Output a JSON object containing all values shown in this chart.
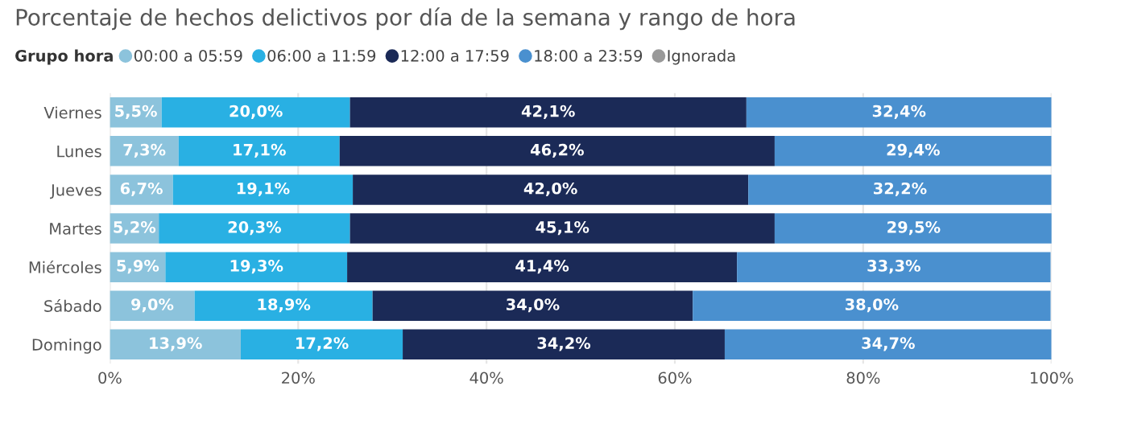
{
  "chart_data": {
    "type": "bar",
    "orientation": "horizontal",
    "stacked": true,
    "title": "Porcentaje de hechos delictivos por día de la semana y rango de hora",
    "legend_title": "Grupo hora",
    "legend": "top left",
    "grid": "x",
    "categories": [
      "Viernes",
      "Lunes",
      "Jueves",
      "Martes",
      "Miércoles",
      "Sábado",
      "Domingo"
    ],
    "xlim": [
      0,
      100
    ],
    "xticks": [
      {
        "value": 0,
        "label": "0%"
      },
      {
        "value": 20,
        "label": "20%"
      },
      {
        "value": 40,
        "label": "40%"
      },
      {
        "value": 60,
        "label": "60%"
      },
      {
        "value": 80,
        "label": "80%"
      },
      {
        "value": 100,
        "label": "100%"
      }
    ],
    "series": [
      {
        "name": "00:00 a 05:59",
        "color": "#8cc3dc",
        "values": [
          5.5,
          7.3,
          6.7,
          5.2,
          5.9,
          9.0,
          13.9
        ],
        "value_labels": [
          "5,5%",
          "7,3%",
          "6,7%",
          "5,2%",
          "5,9%",
          "9,0%",
          "13,9%"
        ]
      },
      {
        "name": "06:00 a 11:59",
        "color": "#29b0e3",
        "values": [
          20.0,
          17.1,
          19.1,
          20.3,
          19.3,
          18.9,
          17.2
        ],
        "value_labels": [
          "20,0%",
          "17,1%",
          "19,1%",
          "20,3%",
          "19,3%",
          "18,9%",
          "17,2%"
        ]
      },
      {
        "name": "12:00 a 17:59",
        "color": "#1b2a57",
        "values": [
          42.1,
          46.2,
          42.0,
          45.1,
          41.4,
          34.0,
          34.2
        ],
        "value_labels": [
          "42,1%",
          "46,2%",
          "42,0%",
          "45,1%",
          "41,4%",
          "34,0%",
          "34,2%"
        ]
      },
      {
        "name": "18:00 a 23:59",
        "color": "#4a90cf",
        "values": [
          32.4,
          29.4,
          32.2,
          29.5,
          33.3,
          38.0,
          34.7
        ],
        "value_labels": [
          "32,4%",
          "29,4%",
          "32,2%",
          "29,5%",
          "33,3%",
          "38,0%",
          "34,7%"
        ]
      },
      {
        "name": "Ignorada",
        "color": "#999999",
        "values": [
          null,
          null,
          null,
          null,
          null,
          null,
          null
        ],
        "value_labels": [
          null,
          null,
          null,
          null,
          null,
          null,
          null
        ]
      }
    ]
  }
}
